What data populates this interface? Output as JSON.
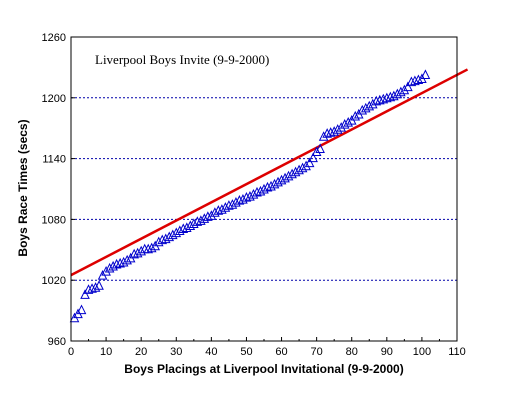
{
  "chart_data": {
    "type": "scatter",
    "annotation": "Liverpool Boys Invite (9-9-2000)",
    "xlabel": "Boys Placings at Liverpool Invitational (9-9-2000)",
    "ylabel": "Boys Race Times (secs)",
    "xlim": [
      0,
      110
    ],
    "ylim": [
      960,
      1260
    ],
    "xticks": [
      0,
      10,
      20,
      30,
      40,
      50,
      60,
      70,
      80,
      90,
      100,
      110
    ],
    "yticks": [
      960,
      1020,
      1080,
      1140,
      1200,
      1260
    ],
    "grid": "horizontal dotted lines at 1020, 1080, 1140, 1200",
    "colors": {
      "points": "#0000cc",
      "fit_line": "#dd0000",
      "grid": "#0000aa"
    },
    "series": [
      {
        "marker": "triangle-open",
        "x": [
          1,
          2,
          3,
          4,
          5,
          6,
          7,
          8,
          9,
          10,
          11,
          12,
          13,
          14,
          15,
          16,
          17,
          18,
          19,
          20,
          21,
          22,
          23,
          24,
          25,
          26,
          27,
          28,
          29,
          30,
          31,
          32,
          33,
          34,
          35,
          36,
          37,
          38,
          39,
          40,
          41,
          42,
          43,
          44,
          45,
          46,
          47,
          48,
          49,
          50,
          51,
          52,
          53,
          54,
          55,
          56,
          57,
          58,
          59,
          60,
          61,
          62,
          63,
          64,
          65,
          66,
          67,
          68,
          69,
          70,
          71,
          72,
          73,
          74,
          75,
          76,
          77,
          78,
          79,
          80,
          81,
          82,
          83,
          84,
          85,
          86,
          87,
          88,
          89,
          90,
          91,
          92,
          93,
          94,
          95,
          96,
          97,
          98,
          99,
          100,
          101
        ],
        "y": [
          983,
          987,
          991,
          1006,
          1011,
          1012,
          1013,
          1015,
          1025,
          1029,
          1032,
          1034,
          1036,
          1037,
          1038,
          1040,
          1042,
          1046,
          1047,
          1049,
          1051,
          1051,
          1052,
          1054,
          1058,
          1060,
          1061,
          1063,
          1065,
          1067,
          1069,
          1071,
          1072,
          1074,
          1076,
          1078,
          1079,
          1081,
          1083,
          1084,
          1087,
          1089,
          1090,
          1092,
          1094,
          1095,
          1097,
          1099,
          1100,
          1102,
          1103,
          1105,
          1107,
          1108,
          1110,
          1112,
          1113,
          1115,
          1117,
          1119,
          1121,
          1123,
          1125,
          1127,
          1129,
          1131,
          1133,
          1136,
          1141,
          1147,
          1150,
          1162,
          1165,
          1166,
          1167,
          1169,
          1171,
          1174,
          1176,
          1178,
          1182,
          1184,
          1188,
          1190,
          1192,
          1194,
          1197,
          1198,
          1199,
          1200,
          1201,
          1202,
          1204,
          1206,
          1208,
          1211,
          1216,
          1217,
          1218,
          1219,
          1223
        ]
      },
      {
        "type": "line",
        "x": [
          0,
          113
        ],
        "y": [
          1025,
          1228
        ]
      }
    ]
  }
}
